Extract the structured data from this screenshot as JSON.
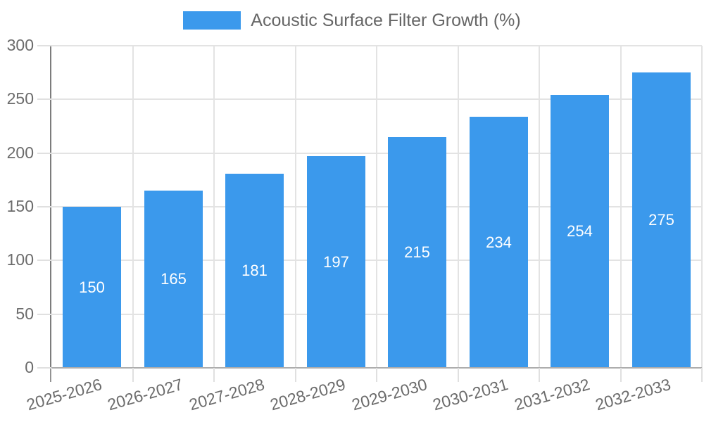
{
  "legend": {
    "label": "Acoustic Surface Filter Growth (%)"
  },
  "chart_data": {
    "type": "bar",
    "title": "Acoustic Surface Filter Growth (%)",
    "series_name": "Acoustic Surface Filter Growth (%)",
    "categories": [
      "2025-2026",
      "2026-2027",
      "2027-2028",
      "2028-2029",
      "2029-2030",
      "2030-2031",
      "2031-2032",
      "2032-2033"
    ],
    "values": [
      150,
      165,
      181,
      197,
      215,
      234,
      254,
      275
    ],
    "value_labels": [
      "150",
      "165",
      "181",
      "197",
      "215",
      "234",
      "254",
      "275"
    ],
    "xlabel": "",
    "ylabel": "",
    "ylim": [
      0,
      300
    ],
    "yticks": [
      0,
      50,
      100,
      150,
      200,
      250,
      300
    ],
    "grid": true,
    "legend_position": "top-center",
    "bar_color": "#3b99ec",
    "value_label_color": "#ffffff",
    "axis_text_color": "#6b6b6b",
    "gridline_color": "#e3e3e3"
  }
}
